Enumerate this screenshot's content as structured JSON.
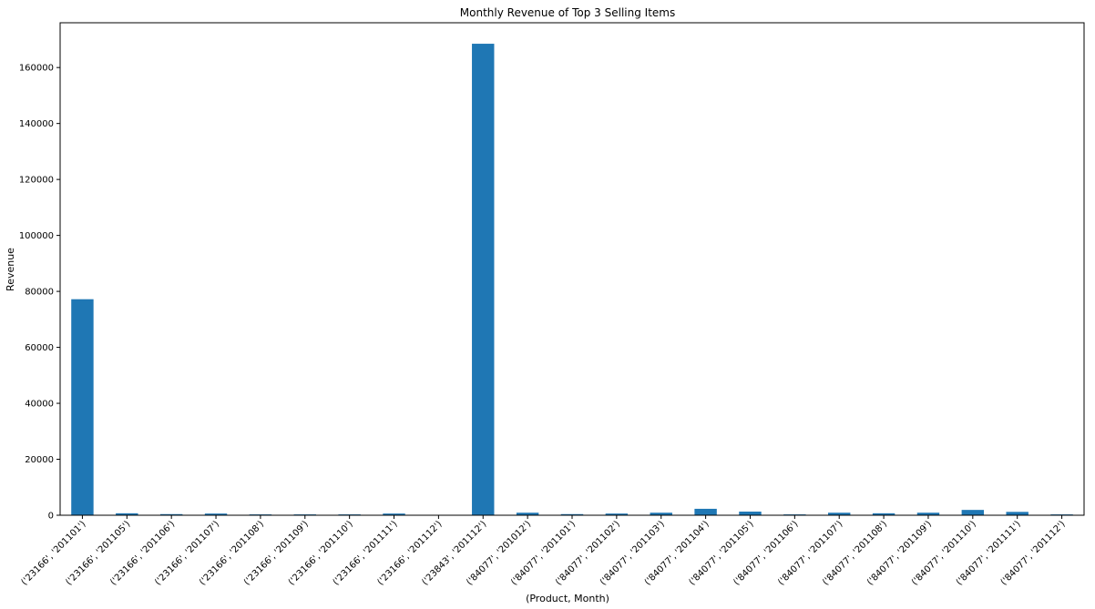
{
  "chart_data": {
    "type": "bar",
    "title": "Monthly Revenue of Top 3 Selling Items",
    "xlabel": "(Product, Month)",
    "ylabel": "Revenue",
    "ylim": [
      0,
      176000
    ],
    "yticks": [
      0,
      20000,
      40000,
      60000,
      80000,
      100000,
      120000,
      140000,
      160000
    ],
    "grid": false,
    "bar_color": "#1f77b4",
    "categories": [
      "('23166', '201101')",
      "('23166', '201105')",
      "('23166', '201106')",
      "('23166', '201107')",
      "('23166', '201108')",
      "('23166', '201109')",
      "('23166', '201110')",
      "('23166', '201111')",
      "('23166', '201112')",
      "('23843', '201112')",
      "('84077', '201012')",
      "('84077', '201101')",
      "('84077', '201102')",
      "('84077', '201103')",
      "('84077', '201104')",
      "('84077', '201105')",
      "('84077', '201106')",
      "('84077', '201107')",
      "('84077', '201108')",
      "('84077', '201109')",
      "('84077', '201110')",
      "('84077', '201111')",
      "('84077', '201112')"
    ],
    "values": [
      77200,
      700,
      400,
      600,
      300,
      300,
      300,
      600,
      0,
      168500,
      900,
      400,
      600,
      900,
      2300,
      1300,
      300,
      900,
      700,
      900,
      1900,
      1200,
      300
    ]
  }
}
